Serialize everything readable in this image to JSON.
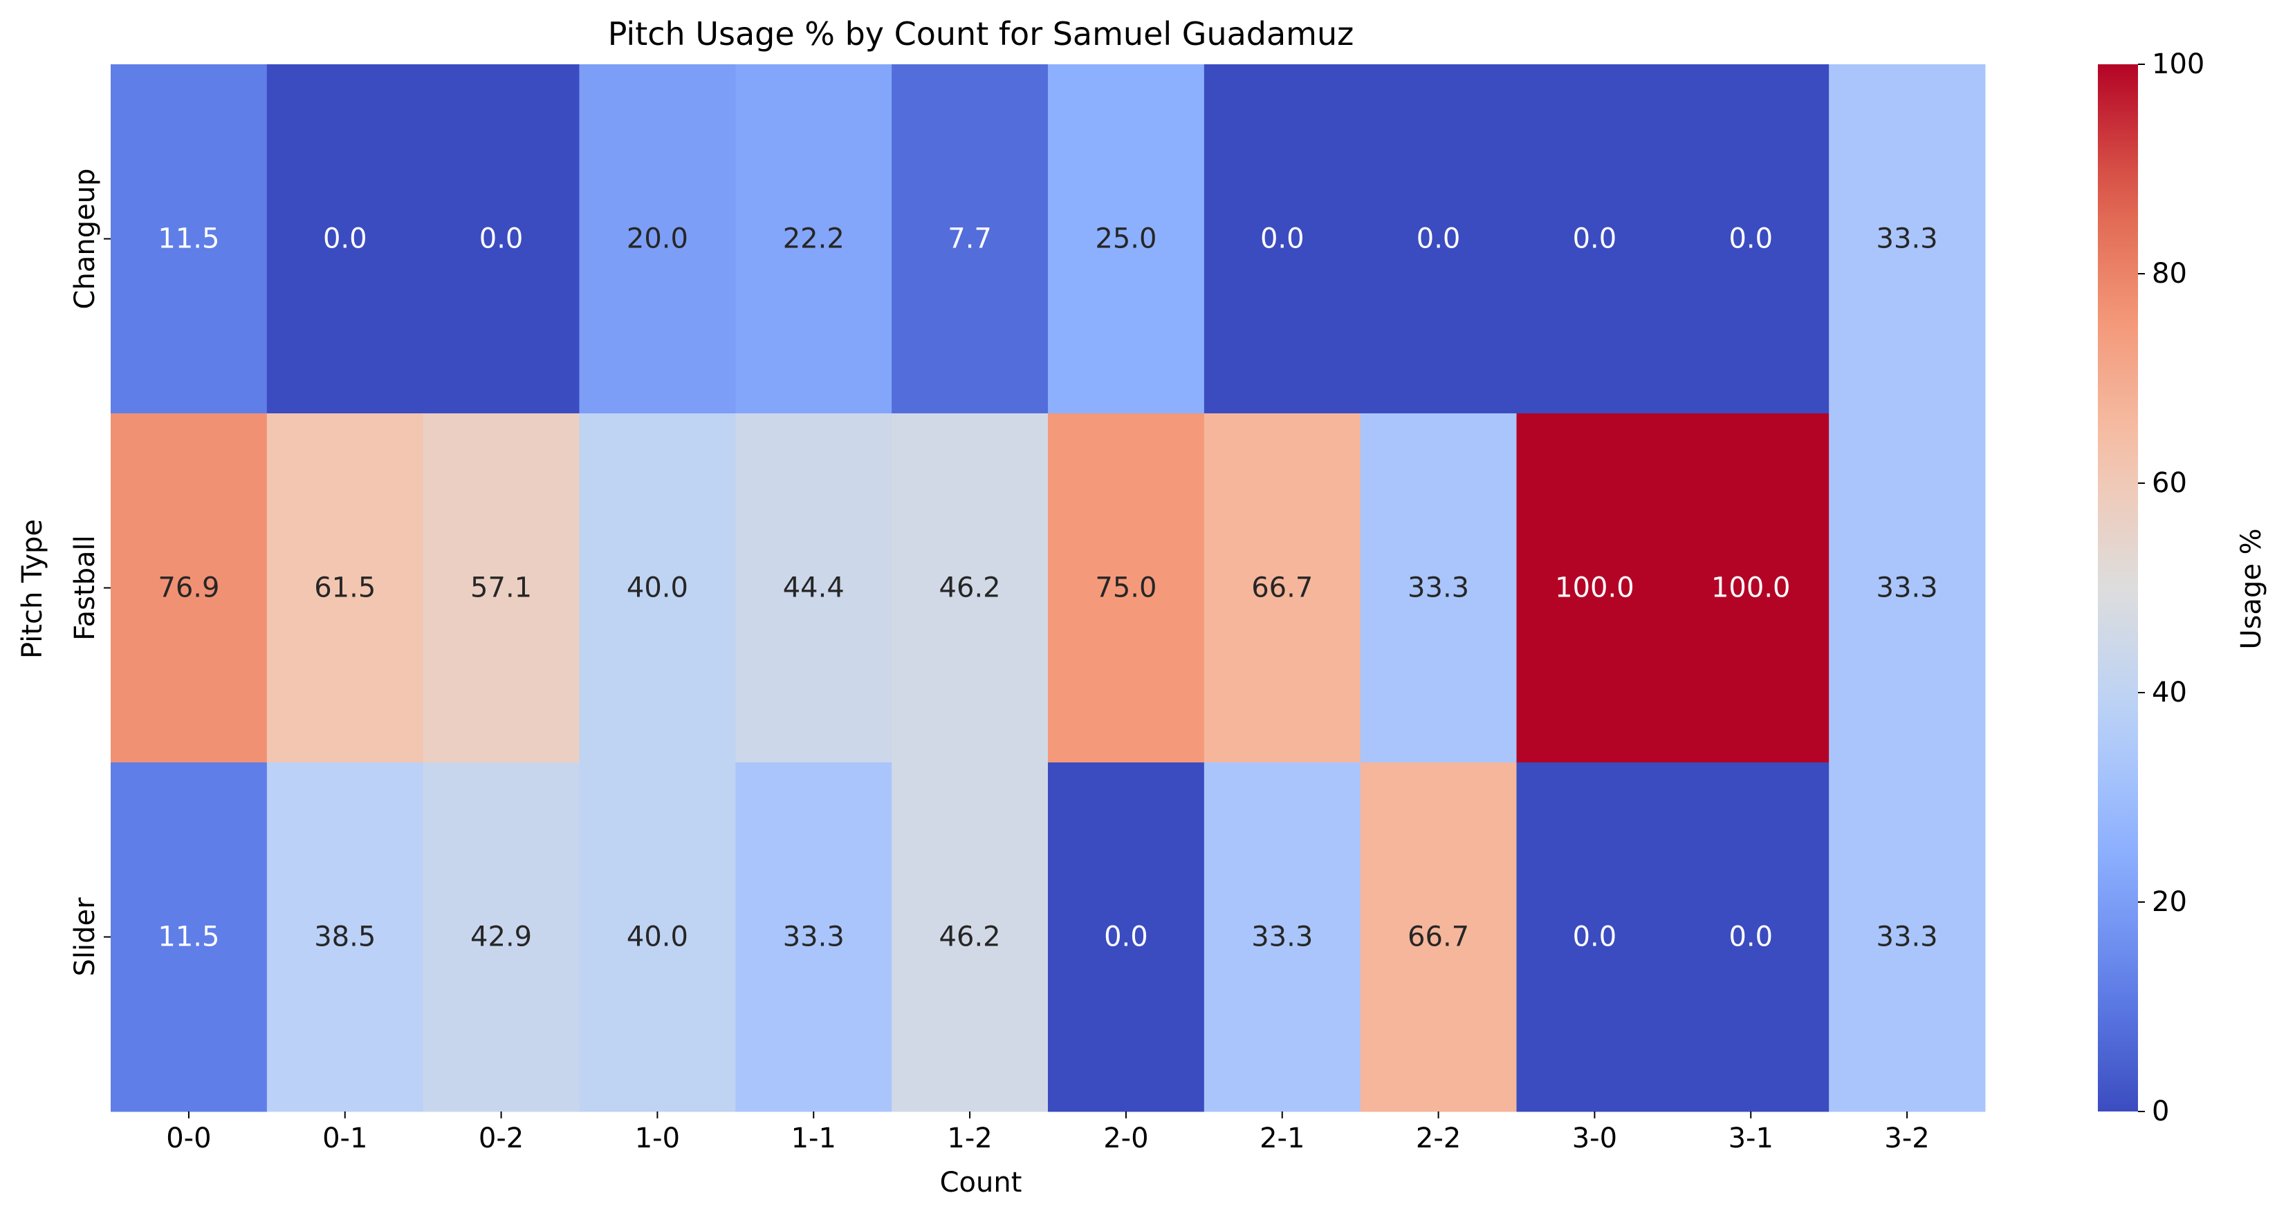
{
  "chart_data": {
    "type": "heatmap",
    "title": "Pitch Usage % by Count for Samuel Guadamuz",
    "xlabel": "Count",
    "ylabel": "Pitch Type",
    "x_categories": [
      "0-0",
      "0-1",
      "0-2",
      "1-0",
      "1-1",
      "1-2",
      "2-0",
      "2-1",
      "2-2",
      "3-0",
      "3-1",
      "3-2"
    ],
    "y_categories": [
      "Changeup",
      "Fastball",
      "Slider"
    ],
    "values": [
      [
        11.5,
        0.0,
        0.0,
        20.0,
        22.2,
        7.7,
        25.0,
        0.0,
        0.0,
        0.0,
        0.0,
        33.3
      ],
      [
        76.9,
        61.5,
        57.1,
        40.0,
        44.4,
        46.2,
        75.0,
        66.7,
        33.3,
        100.0,
        100.0,
        33.3
      ],
      [
        11.5,
        38.5,
        42.9,
        40.0,
        33.3,
        46.2,
        0.0,
        33.3,
        66.7,
        0.0,
        0.0,
        33.3
      ]
    ],
    "colormap": "coolwarm",
    "vmin": 0,
    "vmax": 100,
    "colorbar": {
      "label": "Usage %",
      "ticks": [
        0,
        20,
        40,
        60,
        80,
        100
      ]
    },
    "annotation_format": "0.1f"
  }
}
